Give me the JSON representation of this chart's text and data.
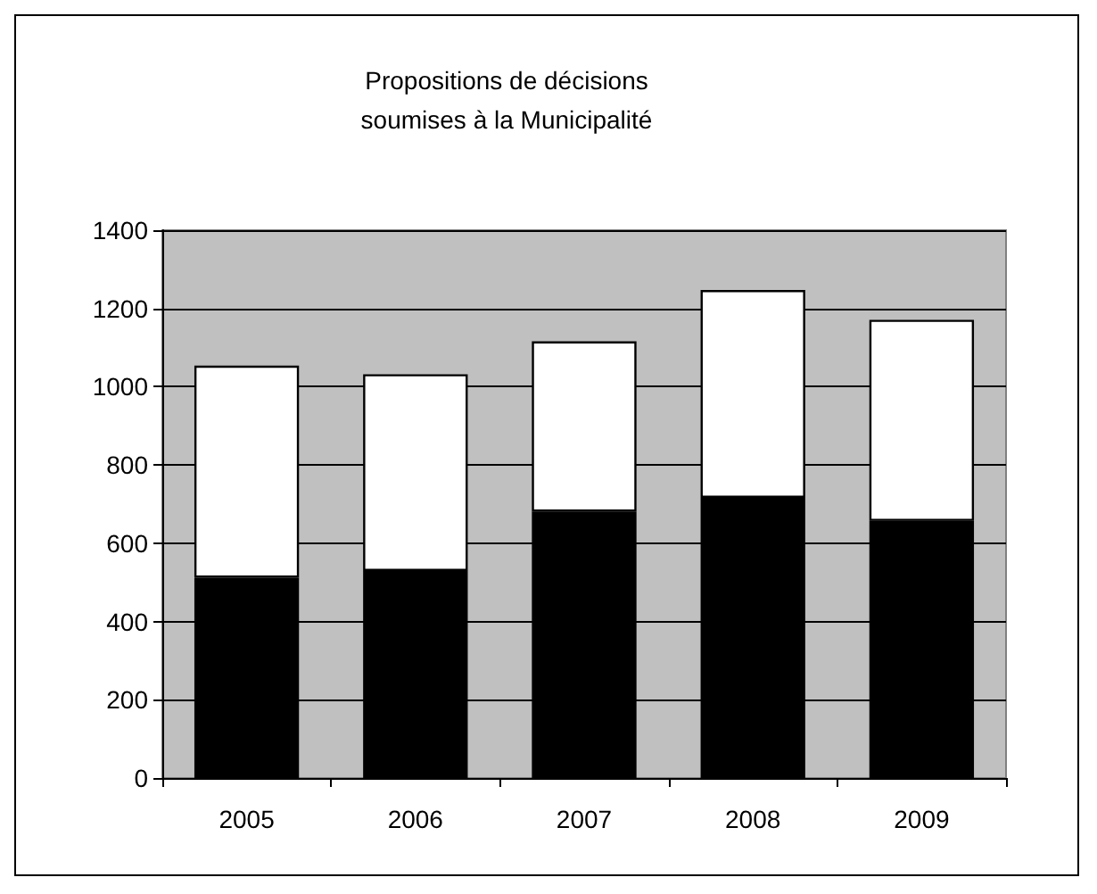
{
  "chart_data": {
    "type": "bar",
    "title": "Propositions de décisions\nsoumises à la Municipalité",
    "categories": [
      "2005",
      "2006",
      "2007",
      "2008",
      "2009"
    ],
    "stacked": true,
    "series": [
      {
        "color": "#000000",
        "values": [
          512,
          529,
          681,
          716,
          657
        ]
      },
      {
        "color": "#ffffff",
        "values": [
          542,
          503,
          435,
          531,
          514
        ]
      }
    ],
    "ylim": [
      0,
      1400
    ],
    "yticks": [
      0,
      200,
      400,
      600,
      800,
      1000,
      1200,
      1400
    ],
    "grid": "y"
  }
}
